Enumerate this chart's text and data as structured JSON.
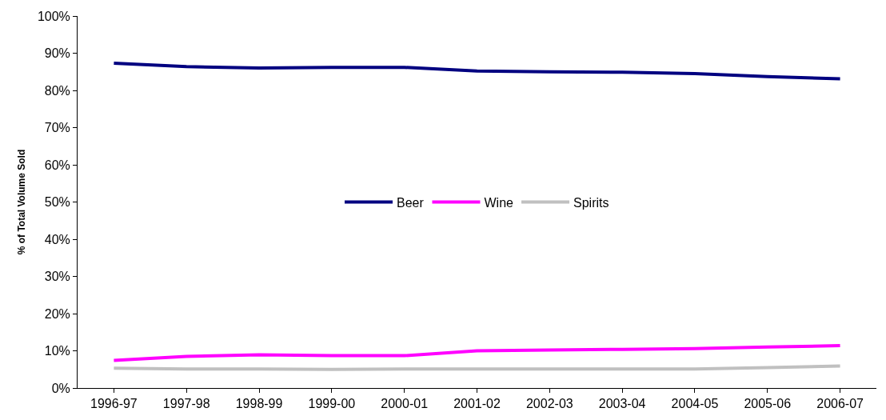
{
  "chart_data": {
    "type": "line",
    "ylabel": "% of Total Volume Sold",
    "categories": [
      "1996-97",
      "1997-98",
      "1998-99",
      "1999-00",
      "2000-01",
      "2001-02",
      "2002-03",
      "2003-04",
      "2004-05",
      "2005-06",
      "2006-07"
    ],
    "series": [
      {
        "name": "Beer",
        "color": "#000080",
        "values": [
          87.3,
          86.4,
          86.0,
          86.2,
          86.2,
          85.2,
          85.0,
          84.9,
          84.5,
          83.7,
          83.1
        ]
      },
      {
        "name": "Wine",
        "color": "#ff00ff",
        "values": [
          7.4,
          8.5,
          8.9,
          8.7,
          8.7,
          10.0,
          10.2,
          10.4,
          10.6,
          11.0,
          11.4
        ]
      },
      {
        "name": "Spirits",
        "color": "#c0c0c0",
        "values": [
          5.3,
          5.1,
          5.1,
          5.0,
          5.1,
          5.1,
          5.1,
          5.1,
          5.1,
          5.5,
          5.9
        ]
      }
    ],
    "ylim": [
      0,
      100
    ],
    "yticks": [
      {
        "value": 0,
        "label": "0%"
      },
      {
        "value": 10,
        "label": "10%"
      },
      {
        "value": 20,
        "label": "20%"
      },
      {
        "value": 30,
        "label": "30%"
      },
      {
        "value": 40,
        "label": "40%"
      },
      {
        "value": 50,
        "label": "50%"
      },
      {
        "value": 60,
        "label": "60%"
      },
      {
        "value": 70,
        "label": "70%"
      },
      {
        "value": 80,
        "label": "80%"
      },
      {
        "value": 90,
        "label": "90%"
      },
      {
        "value": 100,
        "label": "100%"
      }
    ],
    "grid": false,
    "legend": "center",
    "marker": "none",
    "line_style": "solid"
  }
}
